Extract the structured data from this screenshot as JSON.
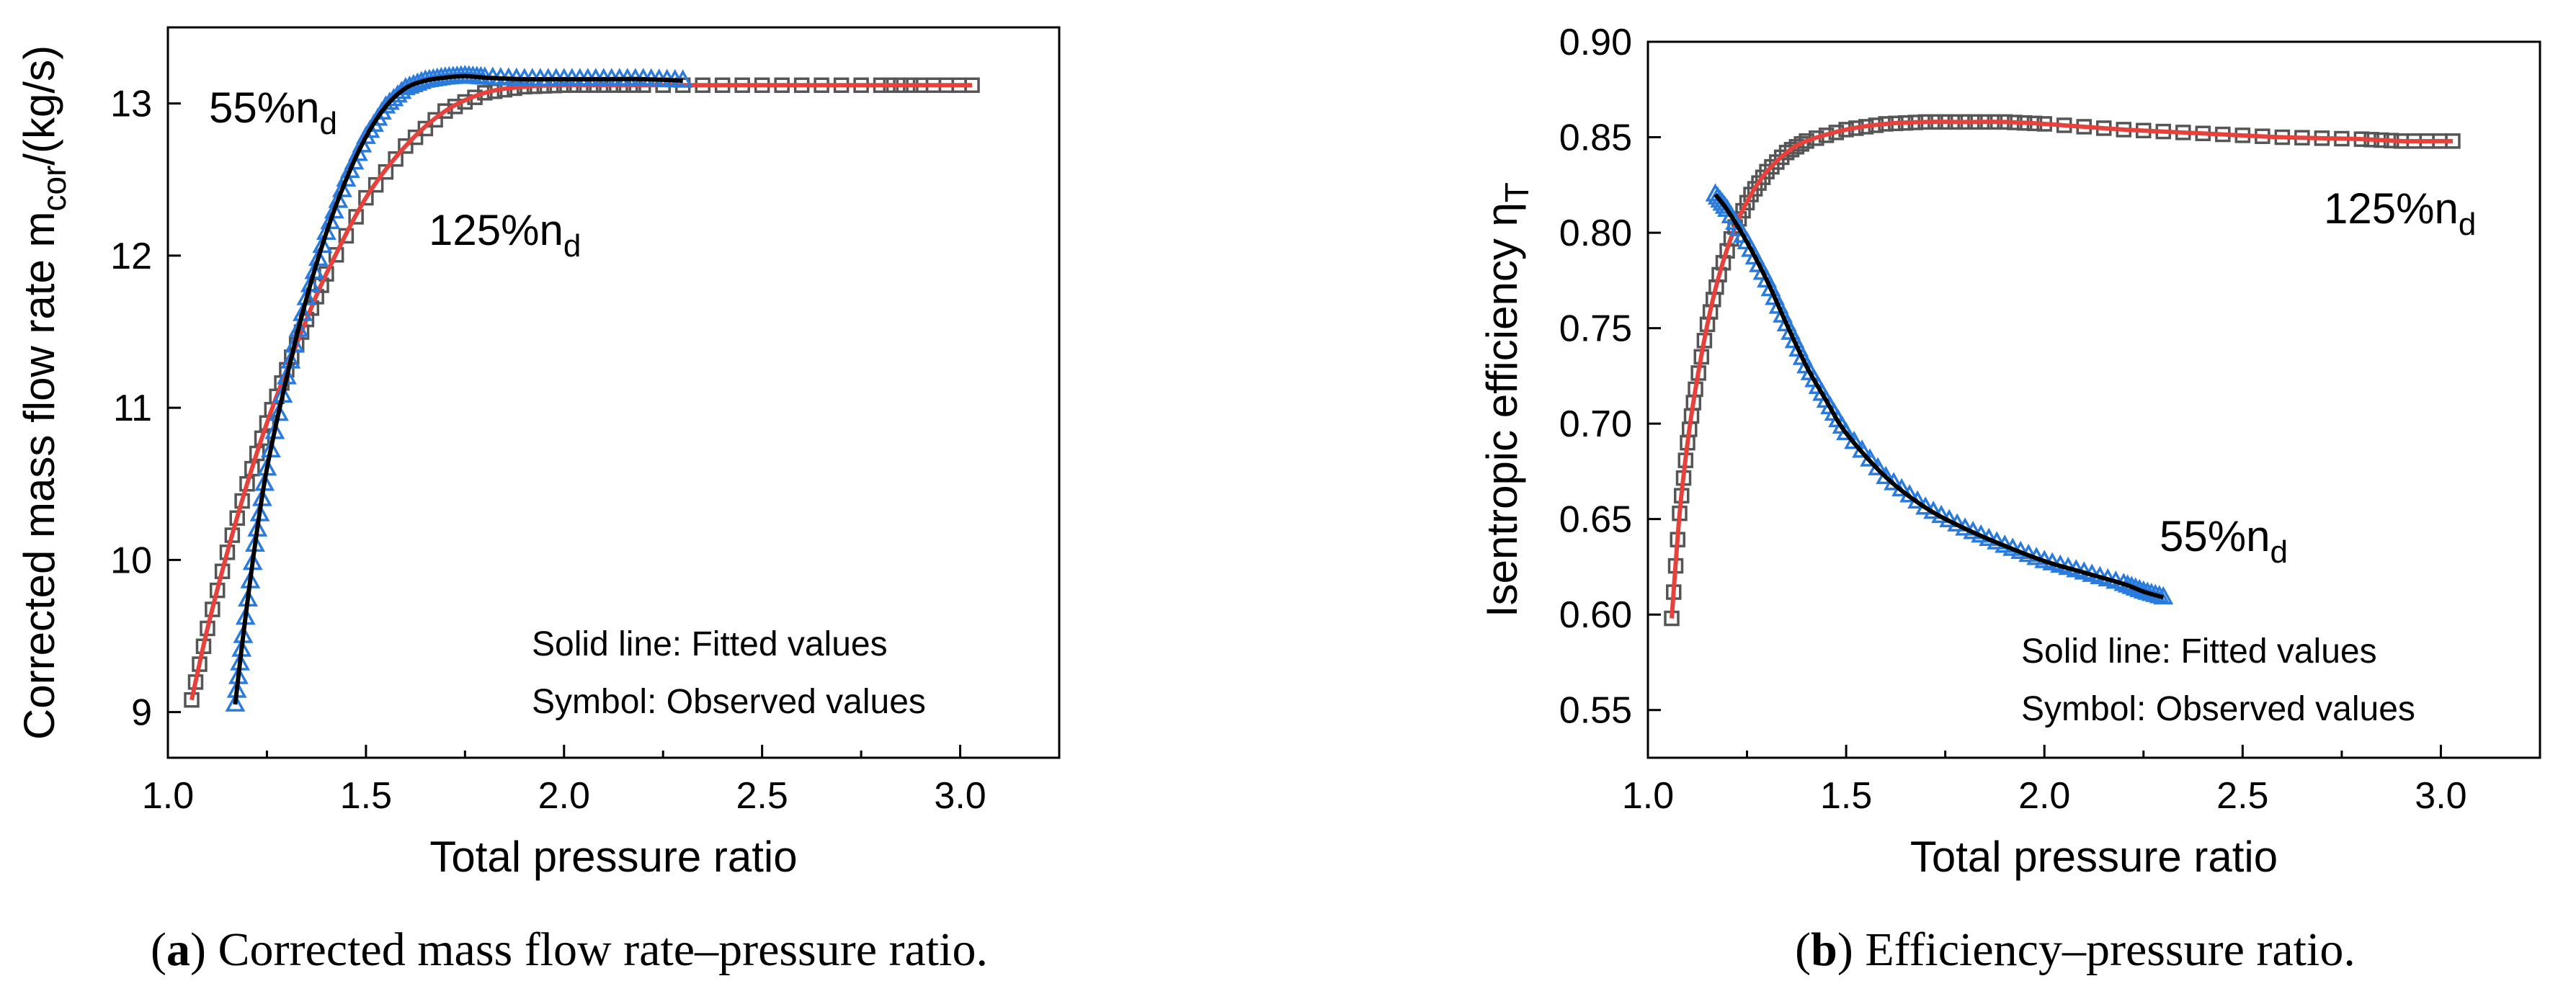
{
  "colors": {
    "fit_125": "#e8413c",
    "obs_125": "#555555",
    "fit_55": "#000000",
    "obs_55": "#2a7bde"
  },
  "chart_data": [
    {
      "id": "a",
      "type": "line",
      "xlabel": "Total pressure ratio",
      "ylabel": "Corrected mass flow rate m",
      "ylabel_sub": "cor",
      "ylabel_unit": "/(kg/s)",
      "xlim": [
        1.0,
        3.25
      ],
      "ylim": [
        8.7,
        13.5
      ],
      "xticks": [
        "1.0",
        "1.5",
        "2.0",
        "2.5",
        "3.0"
      ],
      "xtick_values": [
        1.0,
        1.5,
        2.0,
        2.5,
        3.0
      ],
      "yticks": [
        "9",
        "10",
        "11",
        "12",
        "13"
      ],
      "ytick_values": [
        9,
        10,
        11,
        12,
        13
      ],
      "legend": [
        "Solid line: Fitted values",
        "Symbol: Observed values"
      ],
      "caption_letter": "a",
      "caption_text": ") Corrected mass flow rate–pressure ratio.",
      "series": [
        {
          "name": "125%n_d",
          "label_main": "125%n",
          "label_sub": "d",
          "marker": "square",
          "fit_color_key": "fit_125",
          "obs_color_key": "obs_125",
          "x": [
            1.06,
            1.1,
            1.15,
            1.2,
            1.25,
            1.3,
            1.35,
            1.4,
            1.5,
            1.6,
            1.7,
            1.8,
            1.9,
            2.0,
            2.1,
            2.2,
            2.4,
            2.6,
            2.8,
            2.9,
            3.03
          ],
          "values": [
            9.08,
            9.55,
            10.05,
            10.5,
            10.9,
            11.25,
            11.58,
            11.88,
            12.38,
            12.72,
            12.95,
            13.07,
            13.11,
            13.12,
            13.12,
            13.12,
            13.12,
            13.12,
            13.12,
            13.12,
            13.12
          ]
        },
        {
          "name": "55%n_d",
          "label_main": "55%n",
          "label_sub": "d",
          "marker": "triangle",
          "fit_color_key": "fit_55",
          "obs_color_key": "obs_55",
          "x": [
            1.17,
            1.19,
            1.22,
            1.25,
            1.3,
            1.35,
            1.4,
            1.45,
            1.5,
            1.55,
            1.6,
            1.65,
            1.7,
            1.75,
            1.8,
            1.9,
            2.0,
            2.1,
            2.2,
            2.3
          ],
          "values": [
            9.05,
            9.5,
            10.1,
            10.6,
            11.2,
            11.72,
            12.15,
            12.5,
            12.78,
            12.98,
            13.1,
            13.15,
            13.17,
            13.18,
            13.17,
            13.16,
            13.16,
            13.16,
            13.16,
            13.15
          ]
        }
      ]
    },
    {
      "id": "b",
      "type": "line",
      "xlabel": "Total pressure ratio",
      "ylabel": "Isentropic efficiency η",
      "ylabel_sub": "T",
      "ylabel_unit": "",
      "xlim": [
        1.0,
        3.25
      ],
      "ylim": [
        0.525,
        0.9
      ],
      "xticks": [
        "1.0",
        "1.5",
        "2.0",
        "2.5",
        "3.0"
      ],
      "xtick_values": [
        1.0,
        1.5,
        2.0,
        2.5,
        3.0
      ],
      "yticks": [
        "0.55",
        "0.60",
        "0.65",
        "0.70",
        "0.75",
        "0.80",
        "0.85",
        "0.90"
      ],
      "ytick_values": [
        0.55,
        0.6,
        0.65,
        0.7,
        0.75,
        0.8,
        0.85,
        0.9
      ],
      "legend": [
        "Solid line: Fitted values",
        "Symbol: Observed values"
      ],
      "caption_letter": "b",
      "caption_text": ") Efficiency–pressure ratio.",
      "series": [
        {
          "name": "125%n_d",
          "label_main": "125%n",
          "label_sub": "d",
          "marker": "square",
          "fit_color_key": "fit_125",
          "obs_color_key": "obs_125",
          "x": [
            1.06,
            1.08,
            1.1,
            1.12,
            1.15,
            1.18,
            1.22,
            1.26,
            1.3,
            1.35,
            1.4,
            1.5,
            1.6,
            1.7,
            1.8,
            1.9,
            2.0,
            2.2,
            2.4,
            2.6,
            2.8,
            2.9,
            3.03
          ],
          "values": [
            0.598,
            0.653,
            0.69,
            0.718,
            0.752,
            0.778,
            0.803,
            0.82,
            0.832,
            0.842,
            0.848,
            0.854,
            0.857,
            0.858,
            0.858,
            0.858,
            0.857,
            0.854,
            0.852,
            0.85,
            0.849,
            0.848,
            0.848
          ]
        },
        {
          "name": "55%n_d",
          "label_main": "55%n",
          "label_sub": "d",
          "marker": "triangle",
          "fit_color_key": "fit_55",
          "obs_color_key": "obs_55",
          "x": [
            1.17,
            1.2,
            1.25,
            1.3,
            1.35,
            1.4,
            1.45,
            1.5,
            1.6,
            1.7,
            1.8,
            1.9,
            2.0,
            2.1,
            2.2,
            2.25,
            2.3
          ],
          "values": [
            0.82,
            0.812,
            0.795,
            0.775,
            0.752,
            0.73,
            0.712,
            0.695,
            0.672,
            0.656,
            0.645,
            0.636,
            0.628,
            0.622,
            0.616,
            0.612,
            0.609
          ]
        }
      ]
    }
  ]
}
